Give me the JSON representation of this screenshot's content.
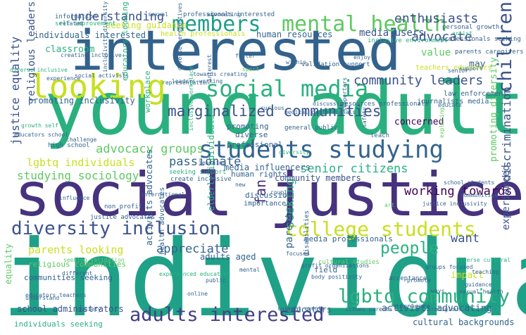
{
  "word_cloud": {
    "palette": [
      "#440154",
      "#3b528b",
      "#21918c",
      "#2ab07f",
      "#5ec962",
      "#c7e020",
      "#fde725"
    ],
    "words": [
      {
        "text": "individual",
        "color": "#1fa187"
      },
      {
        "text": "young adult",
        "color": "#2ab07f"
      },
      {
        "text": "social justice",
        "color": "#46327e"
      },
      {
        "text": "interested",
        "color": "#33638d"
      },
      {
        "text": "looking",
        "color": "#c7e020"
      },
      {
        "text": "mental health",
        "color": "#5ec962"
      },
      {
        "text": "students studying",
        "color": "#33638d"
      },
      {
        "text": "social media",
        "color": "#2ab07f"
      },
      {
        "text": "members",
        "color": "#1f9e89"
      },
      {
        "text": "college students",
        "color": "#c7e020"
      },
      {
        "text": "lgbtq community",
        "color": "#2ab07f"
      },
      {
        "text": "adults interested",
        "color": "#433e85"
      },
      {
        "text": "diversity inclusion",
        "color": "#3b528b"
      },
      {
        "text": "children",
        "color": "#3b528b"
      },
      {
        "text": "people",
        "color": "#2ab07f"
      },
      {
        "text": "marginalized communities",
        "color": "#3b528b"
      },
      {
        "text": "community leaders",
        "color": "#3b528b"
      },
      {
        "text": "understanding",
        "color": "#3b528b"
      },
      {
        "text": "enthusiasts",
        "color": "#3b528b"
      },
      {
        "text": "advocate",
        "color": "#3b528b"
      },
      {
        "text": "advocacy groups",
        "color": "#5ec962"
      },
      {
        "text": "senior citizens",
        "color": "#2ab07f"
      },
      {
        "text": "working towards",
        "color": "#440154"
      },
      {
        "text": "fan",
        "color": "#46327e"
      },
      {
        "text": "passionate",
        "color": "#33638d"
      },
      {
        "text": "appreciate",
        "color": "#33638d"
      },
      {
        "text": "want",
        "color": "#3b528b"
      },
      {
        "text": "seeking",
        "color": "#2ab07f"
      },
      {
        "text": "discrimination",
        "color": "#3b528b"
      },
      {
        "text": "studying sociology",
        "color": "#5ec962"
      },
      {
        "text": "lgbtq individuals",
        "color": "#c7e020"
      },
      {
        "text": "justice equality",
        "color": "#3b528b"
      },
      {
        "text": "parents looking",
        "color": "#c7e020"
      },
      {
        "text": "parents",
        "color": "#33638d"
      },
      {
        "text": "experienced",
        "color": "#3b528b"
      },
      {
        "text": "media users",
        "color": "#3b528b"
      },
      {
        "text": "value",
        "color": "#5ec962"
      },
      {
        "text": "may",
        "color": "#33638d"
      },
      {
        "text": "promoting diversity",
        "color": "#5ec962"
      },
      {
        "text": "religious leaders",
        "color": "#3b528b"
      },
      {
        "text": "classroom",
        "color": "#2ab07f"
      },
      {
        "text": "concerned",
        "color": "#440154"
      },
      {
        "text": "impact",
        "color": "#c7e020"
      },
      {
        "text": "human resources",
        "color": "#33638d"
      },
      {
        "text": "media influencers",
        "color": "#33638d"
      },
      {
        "text": "community members",
        "color": "#3b528b"
      },
      {
        "text": "activists advocating",
        "color": "#33638d"
      },
      {
        "text": "cultural backgrounds",
        "color": "#33638d"
      },
      {
        "text": "school administrators",
        "color": "#3b528b"
      },
      {
        "text": "educators",
        "color": "#33638d"
      },
      {
        "text": "adults aged",
        "color": "#33638d"
      },
      {
        "text": "promoting inclusivity",
        "color": "#33638d"
      },
      {
        "text": "seeking guidance",
        "color": "#c7e020"
      },
      {
        "text": "individuals interested",
        "color": "#33638d"
      },
      {
        "text": "equality",
        "color": "#5ec962"
      },
      {
        "text": "religious communities",
        "color": "#5ec962"
      },
      {
        "text": "communities seeking",
        "color": "#33638d"
      },
      {
        "text": "health advocates",
        "color": "#33638d"
      },
      {
        "text": "professional",
        "color": "#33638d"
      },
      {
        "text": "human rights",
        "color": "#33638d"
      },
      {
        "text": "discussion",
        "color": "#33638d"
      },
      {
        "text": "importance",
        "color": "#33638d"
      },
      {
        "text": "promoting",
        "color": "#33638d"
      },
      {
        "text": "diverse",
        "color": "#33638d"
      },
      {
        "text": "media professionals",
        "color": "#33638d"
      },
      {
        "text": "field",
        "color": "#33638d"
      },
      {
        "text": "individuals seeking",
        "color": "#2ab07f"
      },
      {
        "text": "activists advocates",
        "color": "#33638d"
      },
      {
        "text": "workplace",
        "color": "#2ab07f"
      },
      {
        "text": "educators looking",
        "color": "#2ab07f"
      },
      {
        "text": "teachers educators",
        "color": "#c7e020"
      },
      {
        "text": "law enforcement",
        "color": "#33638d"
      },
      {
        "text": "journalists media",
        "color": "#33638d"
      },
      {
        "text": "personal growth",
        "color": "#33638d"
      },
      {
        "text": "professionals seeking",
        "color": "#33638d"
      },
      {
        "text": "parents caregivers",
        "color": "#33638d"
      },
      {
        "text": "information",
        "color": "#33638d"
      },
      {
        "text": "self improvement",
        "color": "#2ab07f"
      },
      {
        "text": "professionals interested",
        "color": "#33638d"
      },
      {
        "text": "health professionals",
        "color": "#c7e020"
      },
      {
        "text": "inclusive environment",
        "color": "#2ab07f"
      },
      {
        "text": "validation support",
        "color": "#33638d"
      },
      {
        "text": "resources professionals",
        "color": "#33638d"
      },
      {
        "text": "medical professionals",
        "color": "#33638d"
      },
      {
        "text": "general public",
        "color": "#33638d"
      },
      {
        "text": "high school",
        "color": "#33638d"
      },
      {
        "text": "justice advocates",
        "color": "#33638d"
      },
      {
        "text": "cultural studies",
        "color": "#5ec962"
      },
      {
        "text": "groups focused",
        "color": "#33638d"
      },
      {
        "text": "acceptance",
        "color": "#33638d"
      },
      {
        "text": "teenagers",
        "color": "#33638d"
      },
      {
        "text": "current events",
        "color": "#33638d"
      },
      {
        "text": "teaching",
        "color": "#33638d"
      },
      {
        "text": "guidance",
        "color": "#33638d"
      },
      {
        "text": "sexual health",
        "color": "#33638d"
      },
      {
        "text": "diverse cultural",
        "color": "#2ab07f"
      },
      {
        "text": "school students",
        "color": "#33638d"
      },
      {
        "text": "disabilities",
        "color": "#33638d"
      },
      {
        "text": "elderly individuals",
        "color": "#2ab07f"
      },
      {
        "text": "international",
        "color": "#33638d"
      },
      {
        "text": "non profit",
        "color": "#33638d"
      },
      {
        "text": "create inclusive",
        "color": "#33638d"
      },
      {
        "text": "seeking support",
        "color": "#2ab07f"
      },
      {
        "text": "foster",
        "color": "#33638d"
      },
      {
        "text": "enjoy",
        "color": "#33638d"
      },
      {
        "text": "sport",
        "color": "#5ec962"
      },
      {
        "text": "within",
        "color": "#33638d"
      },
      {
        "text": "curious",
        "color": "#33638d"
      },
      {
        "text": "discussing",
        "color": "#33638d"
      },
      {
        "text": "teach",
        "color": "#33638d"
      },
      {
        "text": "educate",
        "color": "#33638d"
      },
      {
        "text": "promote",
        "color": "#33638d"
      },
      {
        "text": "support",
        "color": "#33638d"
      },
      {
        "text": "experience",
        "color": "#33638d"
      },
      {
        "text": "society",
        "color": "#33638d"
      },
      {
        "text": "different",
        "color": "#33638d"
      },
      {
        "text": "online",
        "color": "#33638d"
      },
      {
        "text": "art",
        "color": "#5ec962"
      },
      {
        "text": "couples",
        "color": "#33638d"
      },
      {
        "text": "learning",
        "color": "#33638d"
      },
      {
        "text": "interest",
        "color": "#33638d"
      },
      {
        "text": "influence",
        "color": "#33638d"
      },
      {
        "text": "related",
        "color": "#33638d"
      },
      {
        "text": "challenge",
        "color": "#33638d"
      },
      {
        "text": "safety",
        "color": "#33638d"
      },
      {
        "text": "growth self",
        "color": "#2ab07f"
      },
      {
        "text": "senior",
        "color": "#33638d"
      },
      {
        "text": "artist",
        "color": "#2ab07f"
      },
      {
        "text": "issues parents",
        "color": "#33638d"
      },
      {
        "text": "profit organizations",
        "color": "#33638d"
      },
      {
        "text": "diverse inclusive",
        "color": "#2ab07f"
      },
      {
        "text": "representation",
        "color": "#33638d"
      },
      {
        "text": "sexual",
        "color": "#33638d"
      },
      {
        "text": "advocating",
        "color": "#33638d"
      },
      {
        "text": "mental",
        "color": "#33638d"
      },
      {
        "text": "public",
        "color": "#33638d"
      },
      {
        "text": "focused",
        "color": "#33638d"
      },
      {
        "text": "ways",
        "color": "#33638d"
      },
      {
        "text": "new",
        "color": "#33638d"
      },
      {
        "text": "leaders working",
        "color": "#33638d"
      },
      {
        "text": "towards creating",
        "color": "#33638d"
      },
      {
        "text": "creating inclusive",
        "color": "#33638d"
      },
      {
        "text": "social activists",
        "color": "#33638d"
      },
      {
        "text": "inclusivity diversity",
        "color": "#33638d"
      },
      {
        "text": "body positivity",
        "color": "#33638d"
      },
      {
        "text": "supporters",
        "color": "#33638d"
      },
      {
        "text": "educators school",
        "color": "#33638d"
      },
      {
        "text": "experienced educators",
        "color": "#2ab07f"
      },
      {
        "text": "inclusive workplace",
        "color": "#2ab07f"
      },
      {
        "text": "exploring",
        "color": "#5ec962"
      },
      {
        "text": "diversity",
        "color": "#2ab07f"
      },
      {
        "text": "justice inclusivity",
        "color": "#33638d"
      },
      {
        "text": "communities",
        "color": "#33638d"
      },
      {
        "text": "religious",
        "color": "#33638d"
      },
      {
        "text": "understand",
        "color": "#33638d"
      },
      {
        "text": "seeking validation",
        "color": "#5ec962"
      },
      {
        "text": "educators teachers",
        "color": "#33638d"
      },
      {
        "text": "diverse perspectives",
        "color": "#33638d"
      },
      {
        "text": "young children",
        "color": "#33638d"
      }
    ]
  }
}
